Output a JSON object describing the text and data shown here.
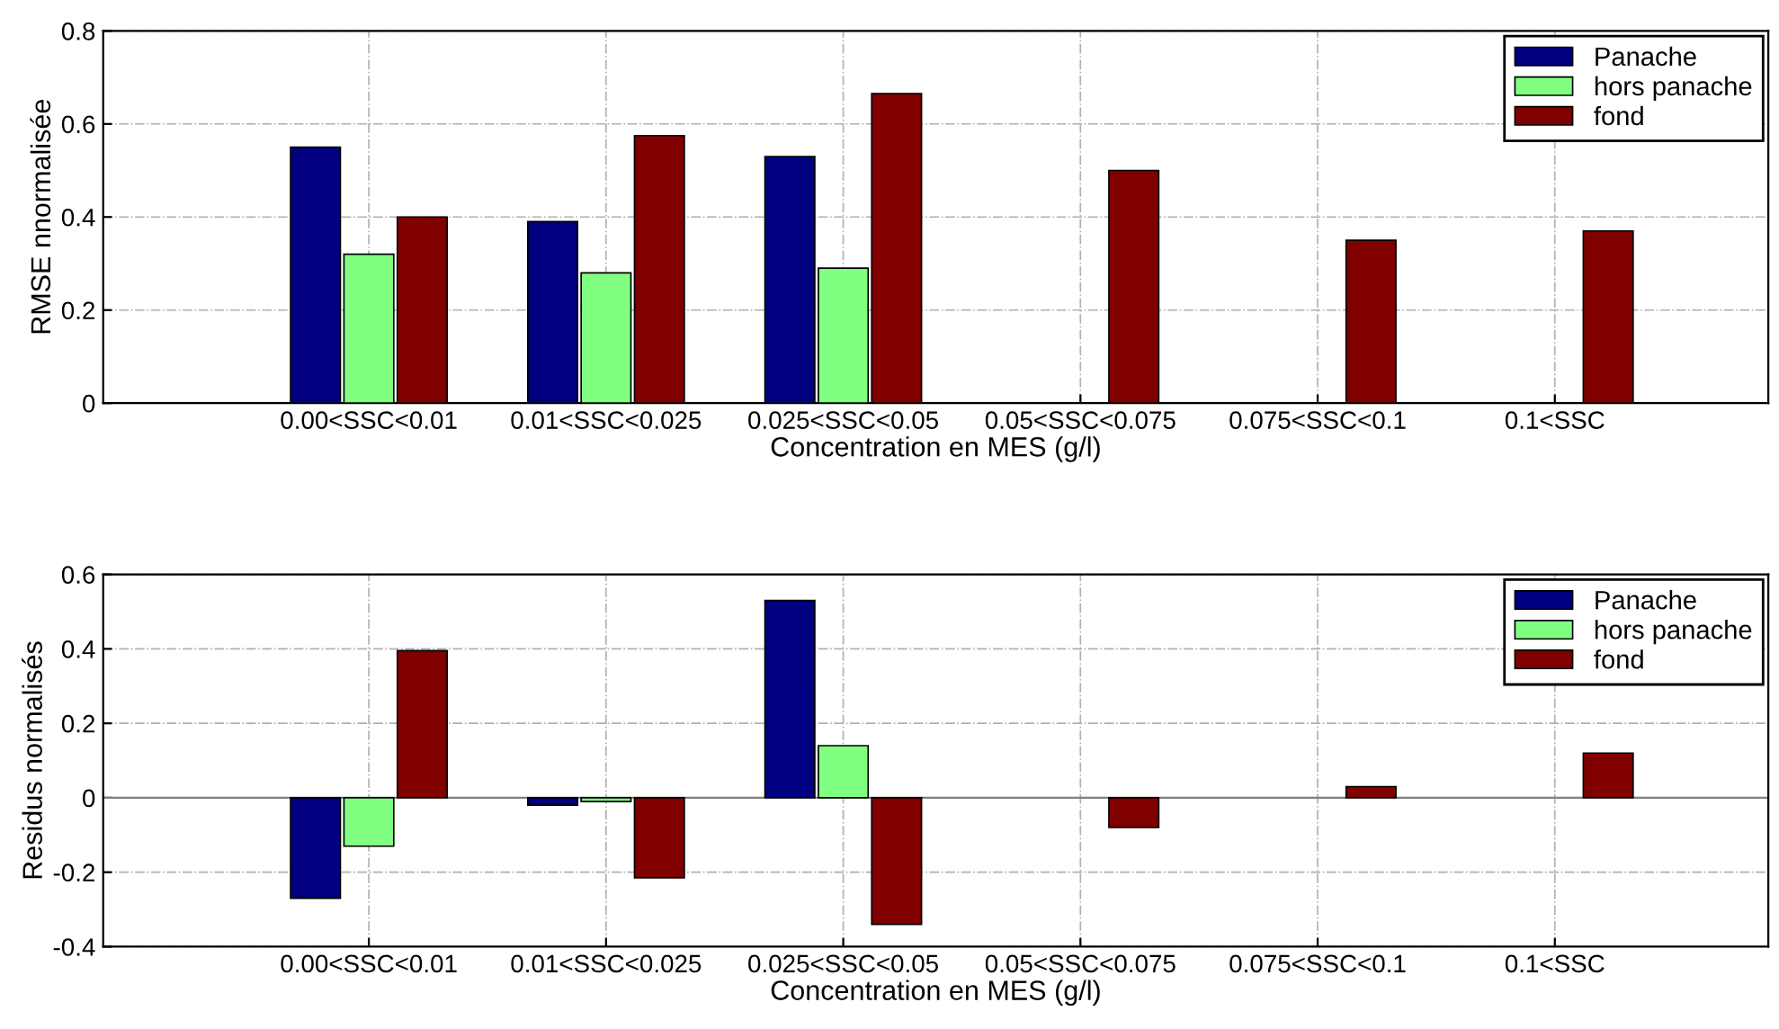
{
  "chart_data": [
    {
      "type": "bar",
      "xlabel": "Concentration en MES (g/l)",
      "ylabel": "RMSE nnormalisée",
      "categories": [
        "0.00<SSC<0.01",
        "0.01<SSC<0.025",
        "0.025<SSC<0.05",
        "0.05<SSC<0.075",
        "0.075<SSC<0.1",
        "0.1<SSC"
      ],
      "series": [
        {
          "name": "Panache",
          "color": "#000080",
          "values": [
            0.55,
            0.39,
            0.53,
            null,
            null,
            null
          ]
        },
        {
          "name": "hors panache",
          "color": "#80ff80",
          "values": [
            0.32,
            0.28,
            0.29,
            null,
            null,
            null
          ]
        },
        {
          "name": "fond",
          "color": "#800000",
          "values": [
            0.4,
            0.575,
            0.665,
            0.5,
            0.35,
            0.37
          ]
        }
      ],
      "ylim": [
        0,
        0.8
      ],
      "yticks": [
        0,
        0.2,
        0.4,
        0.6,
        0.8
      ],
      "grid": true,
      "legend": "top right"
    },
    {
      "type": "bar",
      "xlabel": "Concentration en MES (g/l)",
      "ylabel": "Residus normalisés",
      "categories": [
        "0.00<SSC<0.01",
        "0.01<SSC<0.025",
        "0.025<SSC<0.05",
        "0.05<SSC<0.075",
        "0.075<SSC<0.1",
        "0.1<SSC"
      ],
      "series": [
        {
          "name": "Panache",
          "color": "#000080",
          "values": [
            -0.27,
            -0.02,
            0.53,
            null,
            null,
            null
          ]
        },
        {
          "name": "hors panache",
          "color": "#80ff80",
          "values": [
            -0.13,
            -0.01,
            0.14,
            null,
            null,
            null
          ]
        },
        {
          "name": "fond",
          "color": "#800000",
          "values": [
            0.395,
            -0.215,
            -0.34,
            -0.08,
            0.03,
            0.12
          ]
        }
      ],
      "ylim": [
        -0.4,
        0.6
      ],
      "yticks": [
        -0.4,
        -0.2,
        0,
        0.2,
        0.4,
        0.6
      ],
      "grid": true,
      "legend": "top right"
    }
  ]
}
